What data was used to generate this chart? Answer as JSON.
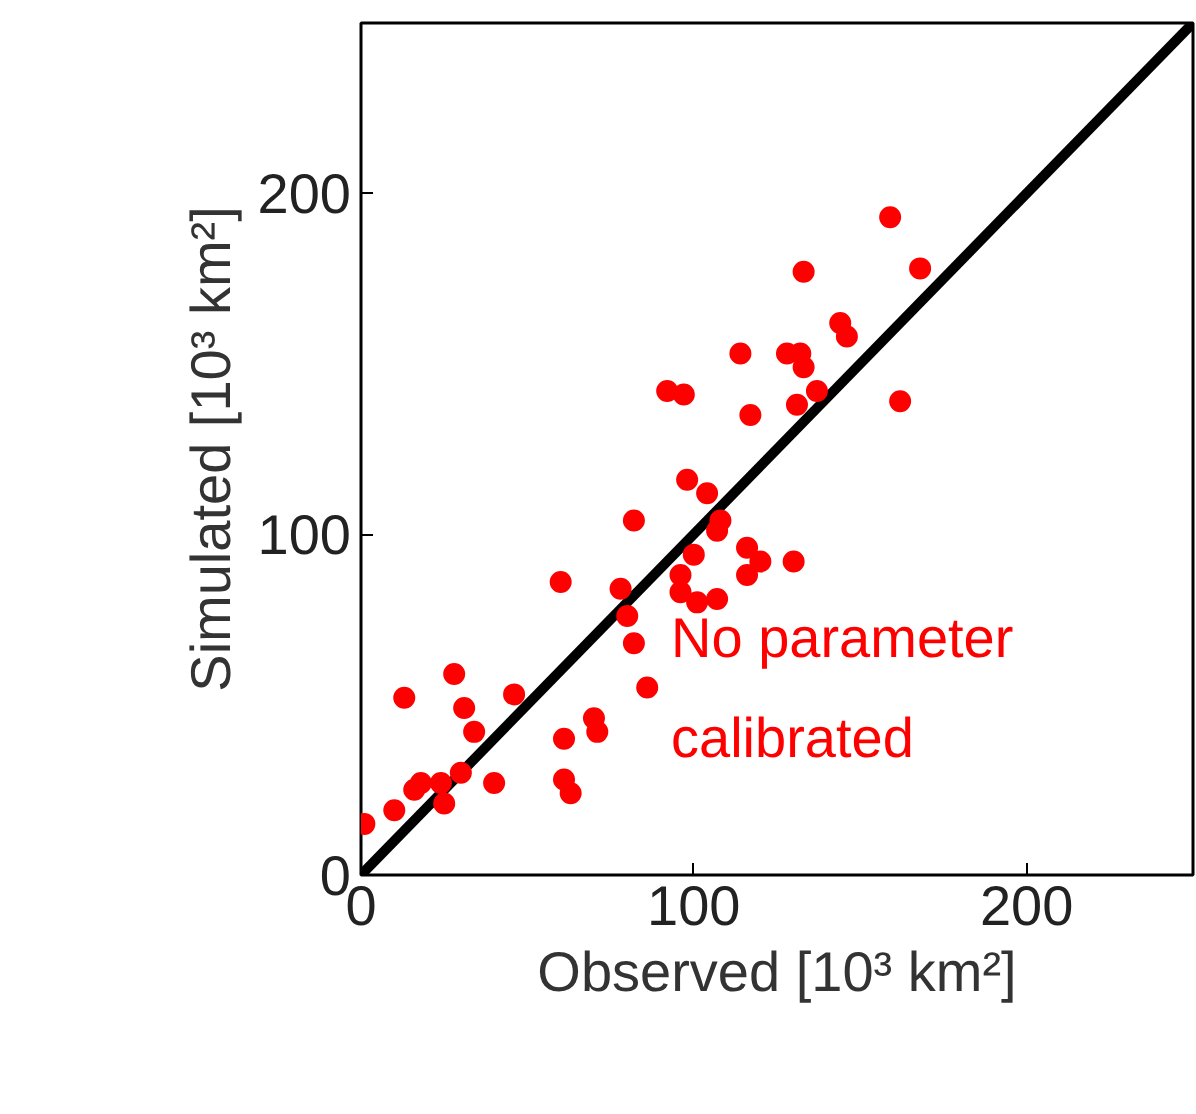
{
  "chart_data": {
    "type": "scatter",
    "xlabel": "Observed [10³ km²]",
    "ylabel": "Simulated [10³ km²]",
    "xlim": [
      0,
      250
    ],
    "ylim": [
      0,
      250
    ],
    "xticks": [
      0,
      100,
      200
    ],
    "yticks": [
      0,
      100,
      200
    ],
    "grid": false,
    "annotations": [
      "No parameter\ncalibrated"
    ],
    "series": [
      {
        "marker": "circle",
        "color": "#ff0000",
        "x": [
          1,
          10,
          13,
          16,
          18,
          24,
          25,
          30,
          28,
          31,
          34,
          40,
          46,
          60,
          61,
          61,
          63,
          70,
          71,
          78,
          80,
          82,
          86,
          82,
          92,
          97,
          98,
          100,
          96,
          96,
          101,
          107,
          104,
          108,
          107,
          114,
          128,
          132,
          133,
          117,
          131,
          137,
          144,
          146,
          162,
          116,
          120,
          116,
          130,
          159,
          168,
          133
        ],
        "values": [
          15,
          19,
          52,
          25,
          27,
          27,
          21,
          30,
          59,
          49,
          42,
          27,
          53,
          86,
          40,
          28,
          24,
          46,
          42,
          84,
          76,
          68,
          55,
          104,
          142,
          141,
          116,
          94,
          88,
          83,
          80,
          81,
          112,
          104,
          101,
          153,
          153,
          153,
          149,
          135,
          138,
          142,
          162,
          158,
          139,
          96,
          92,
          88,
          92,
          193,
          178,
          177
        ]
      },
      {
        "type": "line",
        "color": "#000000",
        "x": [
          0,
          250
        ],
        "values": [
          0,
          250
        ]
      }
    ]
  }
}
